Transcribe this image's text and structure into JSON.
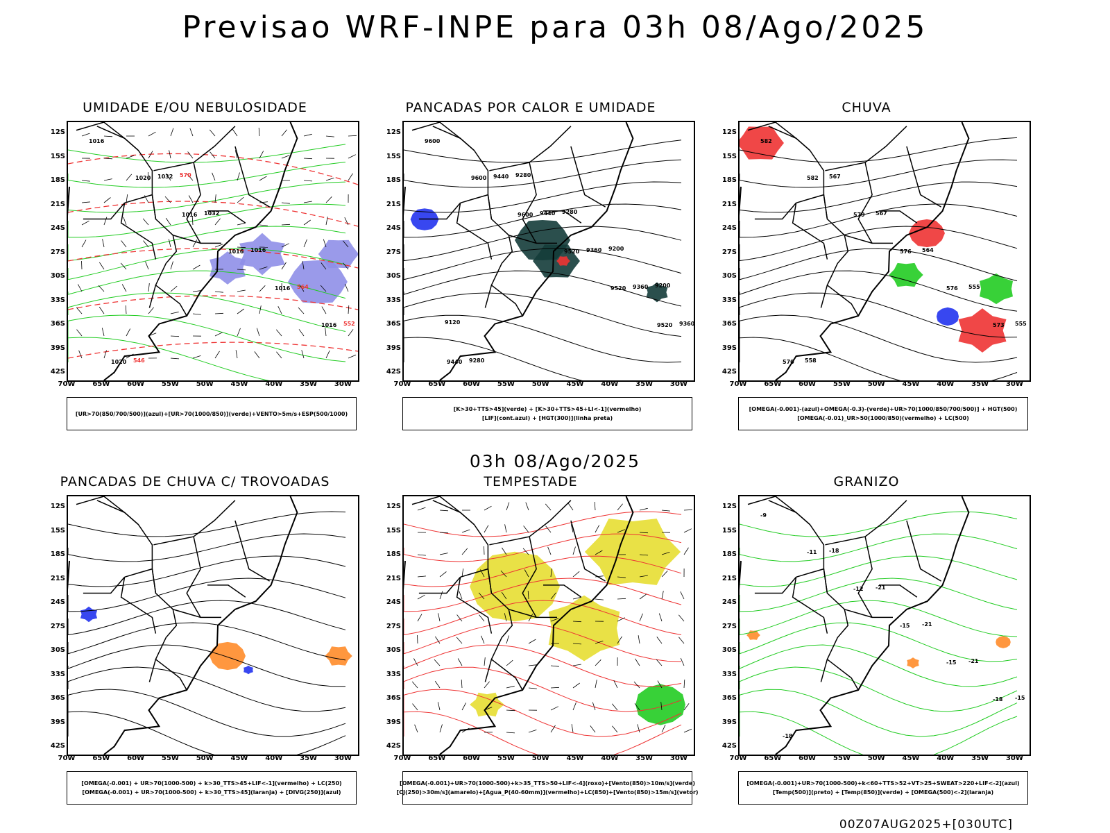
{
  "title": "Previsao WRF-INPE  para 03h 08/Ago/2025",
  "mid_time": "03h 08/Ago/2025",
  "footer_run": "00Z07AUG2025+[030UTC]",
  "lat_labels": [
    "12S",
    "15S",
    "18S",
    "21S",
    "24S",
    "27S",
    "30S",
    "33S",
    "36S",
    "39S",
    "42S"
  ],
  "lon_labels": [
    "70W",
    "65W",
    "60W",
    "55W",
    "50W",
    "45W",
    "40W",
    "35W",
    "30W"
  ],
  "colors": {
    "green": "#22cc22",
    "red": "#ee3333",
    "blue": "#2233ee",
    "lavender": "#8f8fe8",
    "orange": "#ff8c2a",
    "yellow": "#e7de32",
    "darkteal": "#143c3a",
    "black": "#000000"
  },
  "panels": [
    {
      "id": "umidade",
      "title": "UMIDADE E/OU NEBULOSIDADE",
      "legend": [
        "[UR>70(850/700/500)](azul)+[UR>70(1000/850)](verde)+VENTO>5m/s+ESP(500/1000)"
      ],
      "contour_labels": [
        "1016",
        "1020",
        "1016",
        "1016",
        "1016",
        "1016",
        "1020",
        "1032",
        "1032",
        "1016",
        "564",
        "552",
        "546",
        "570"
      ]
    },
    {
      "id": "pancadas-calor",
      "title": "PANCADAS POR CALOR E UMIDADE",
      "legend": [
        "[K>30+TTS>45](verde) + [K>30+TTS>45+LI<-1](vermelho)",
        "[LIF](cont.azul) + [HGT(300)](linha preta)"
      ],
      "contour_labels": [
        "9600",
        "9600",
        "9600",
        "9520",
        "9520",
        "9520",
        "9440",
        "9440",
        "9440",
        "9360",
        "9360",
        "9360",
        "9280",
        "9280",
        "9280",
        "9200",
        "9200",
        "9120"
      ]
    },
    {
      "id": "chuva",
      "title": "CHUVA",
      "legend": [
        "[OMEGA(-0.001)-(azul)+OMEGA(-0.3)-(verde)+UR>70(1000/850/700/500)] + HGT(500)",
        "[OMEGA(-0.01)_UR>50(1000/850)(vermelho) + LC(500)"
      ],
      "contour_labels": [
        "582",
        "582",
        "579",
        "576",
        "576",
        "573",
        "570",
        "567",
        "567",
        "564",
        "555",
        "555",
        "558"
      ]
    },
    {
      "id": "pancadas-trovoadas",
      "title": "PANCADAS DE CHUVA C/ TROVOADAS",
      "legend": [
        "[OMEGA(-0.001) + UR>70(1000-500) + k>30_TTS>45+LIF<-1](vermelho) + LC(250)",
        "[OMEGA(-0.001) + UR>70(1000-500) + k>30_TTS>45](laranja) + [DIVG(250)](azul)"
      ],
      "contour_labels": []
    },
    {
      "id": "tempestade",
      "title": "TEMPESTADE",
      "legend": [
        "[OMEGA(-0.001)+UR>70(1000-500)+k>35_TTS>50+LIF<-4](roxo)+[Vento(850)>10m/s](verde)",
        "[CJ(250)>30m/s](amarelo)+[Agua_P(40-60mm)](vermelho)+LC(850)+[Vento(850)>15m/s](vetor)"
      ],
      "contour_labels": []
    },
    {
      "id": "granizo",
      "title": "GRANIZO",
      "legend": [
        "[OMEGA(-0.001)+UR>70(1000-500)+k<60+TTS>52+VT>25+SWEAT>220+LIF<-2](azul)",
        "[Temp(500)](preto) + [Temp(850)](verde) + [OMEGA(500)<-2](laranja)"
      ],
      "contour_labels": [
        "-9",
        "-11",
        "-12",
        "-15",
        "-15",
        "-18",
        "-18",
        "-18",
        "-21",
        "-21",
        "-21",
        "-15"
      ]
    }
  ]
}
